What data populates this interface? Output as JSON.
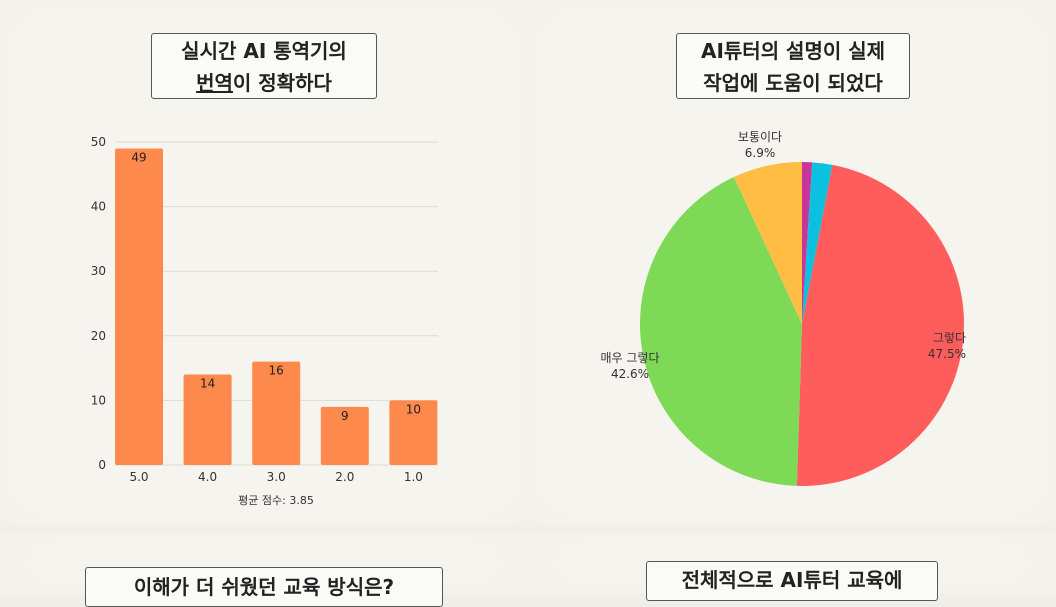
{
  "panels": {
    "p1_title_line1": "실시간 AI 통역기의",
    "p1_title_line2a": "번역",
    "p1_title_line2b": "이 정확하다",
    "p2_title_line1": "AI튜터의 설명이 실제",
    "p2_title_line2": "작업에 도움이 되었다",
    "p3_title": "이해가 더 쉬웠던 교육 방식은?",
    "p4_title": "전체적으로 AI튜터 교육에"
  },
  "chart_data": [
    {
      "type": "bar",
      "categories": [
        "5.0",
        "4.0",
        "3.0",
        "2.0",
        "1.0"
      ],
      "values": [
        49,
        14,
        16,
        9,
        10
      ],
      "ylim": [
        0,
        50
      ],
      "yticks": [
        0,
        10,
        20,
        30,
        40,
        50
      ],
      "grid": true,
      "color": "#fd8a4c",
      "footnote": "평균 점수: 3.85"
    },
    {
      "type": "pie",
      "slices": [
        {
          "label": "그렇다",
          "pct": "47.5%",
          "value": 47.5,
          "color": "#ff5c5c"
        },
        {
          "label": "매우 그렇다",
          "pct": "42.6%",
          "value": 42.6,
          "color": "#7ed957"
        },
        {
          "label": "보통이다",
          "pct": "6.9%",
          "value": 6.9,
          "color": "#ffbd44"
        },
        {
          "label": "",
          "pct": "",
          "value": 1.0,
          "color": "#c9359a"
        },
        {
          "label": "",
          "pct": "",
          "value": 2.0,
          "color": "#0cc0df"
        }
      ]
    }
  ]
}
